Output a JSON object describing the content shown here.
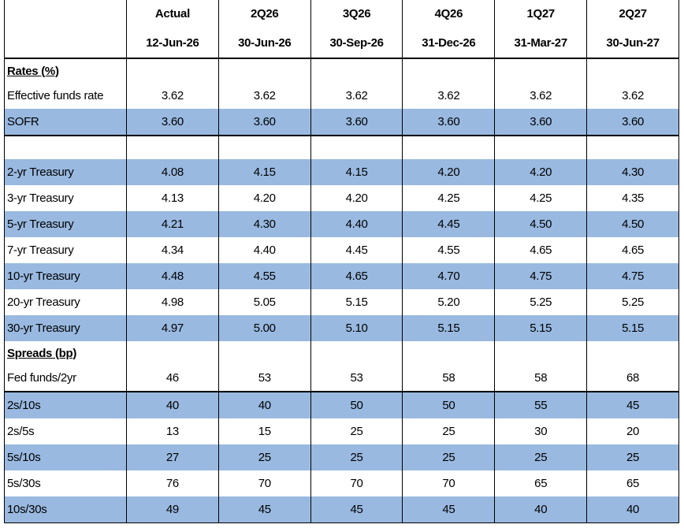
{
  "header": {
    "quarters": [
      "Actual",
      "2Q26",
      "3Q26",
      "4Q26",
      "1Q27",
      "2Q27"
    ],
    "dates": [
      "12-Jun-26",
      "30-Jun-26",
      "30-Sep-26",
      "31-Dec-26",
      "31-Mar-27",
      "30-Jun-27"
    ]
  },
  "table": {
    "rows": [
      {
        "type": "section",
        "label": "Rates (%)"
      },
      {
        "type": "data",
        "label": "Effective funds rate",
        "values": [
          "3.62",
          "3.62",
          "3.62",
          "3.62",
          "3.62",
          "3.62"
        ]
      },
      {
        "type": "data",
        "shaded": true,
        "rule_below": true,
        "label": "SOFR",
        "values": [
          "3.60",
          "3.60",
          "3.60",
          "3.60",
          "3.60",
          "3.60"
        ]
      },
      {
        "type": "spacer"
      },
      {
        "type": "data",
        "shaded": true,
        "label": "2-yr Treasury",
        "values": [
          "4.08",
          "4.15",
          "4.15",
          "4.20",
          "4.20",
          "4.30"
        ]
      },
      {
        "type": "data",
        "label": "3-yr Treasury",
        "values": [
          "4.13",
          "4.20",
          "4.20",
          "4.25",
          "4.25",
          "4.35"
        ]
      },
      {
        "type": "data",
        "shaded": true,
        "label": "5-yr Treasury",
        "values": [
          "4.21",
          "4.30",
          "4.40",
          "4.45",
          "4.50",
          "4.50"
        ]
      },
      {
        "type": "data",
        "label": "7-yr Treasury",
        "values": [
          "4.34",
          "4.40",
          "4.45",
          "4.55",
          "4.65",
          "4.65"
        ]
      },
      {
        "type": "data",
        "shaded": true,
        "label": "10-yr Treasury",
        "values": [
          "4.48",
          "4.55",
          "4.65",
          "4.70",
          "4.75",
          "4.75"
        ]
      },
      {
        "type": "data",
        "label": "20-yr Treasury",
        "values": [
          "4.98",
          "5.05",
          "5.15",
          "5.20",
          "5.25",
          "5.25"
        ]
      },
      {
        "type": "data",
        "shaded": true,
        "label": "30-yr Treasury",
        "values": [
          "4.97",
          "5.00",
          "5.10",
          "5.15",
          "5.15",
          "5.15"
        ]
      },
      {
        "type": "section",
        "label": "Spreads (bp)"
      },
      {
        "type": "data",
        "rule_below": true,
        "label": "Fed funds/2yr",
        "values": [
          "46",
          "53",
          "53",
          "58",
          "58",
          "68"
        ]
      },
      {
        "type": "data",
        "shaded": true,
        "label": "2s/10s",
        "values": [
          "40",
          "40",
          "50",
          "50",
          "55",
          "45"
        ]
      },
      {
        "type": "data",
        "label": "2s/5s",
        "values": [
          "13",
          "15",
          "25",
          "25",
          "30",
          "20"
        ]
      },
      {
        "type": "data",
        "shaded": true,
        "label": "5s/10s",
        "values": [
          "27",
          "25",
          "25",
          "25",
          "25",
          "25"
        ]
      },
      {
        "type": "data",
        "label": "5s/30s",
        "values": [
          "76",
          "70",
          "70",
          "70",
          "65",
          "65"
        ]
      },
      {
        "type": "data",
        "shaded": true,
        "label": "10s/30s",
        "values": [
          "49",
          "45",
          "45",
          "45",
          "40",
          "40"
        ]
      }
    ]
  }
}
